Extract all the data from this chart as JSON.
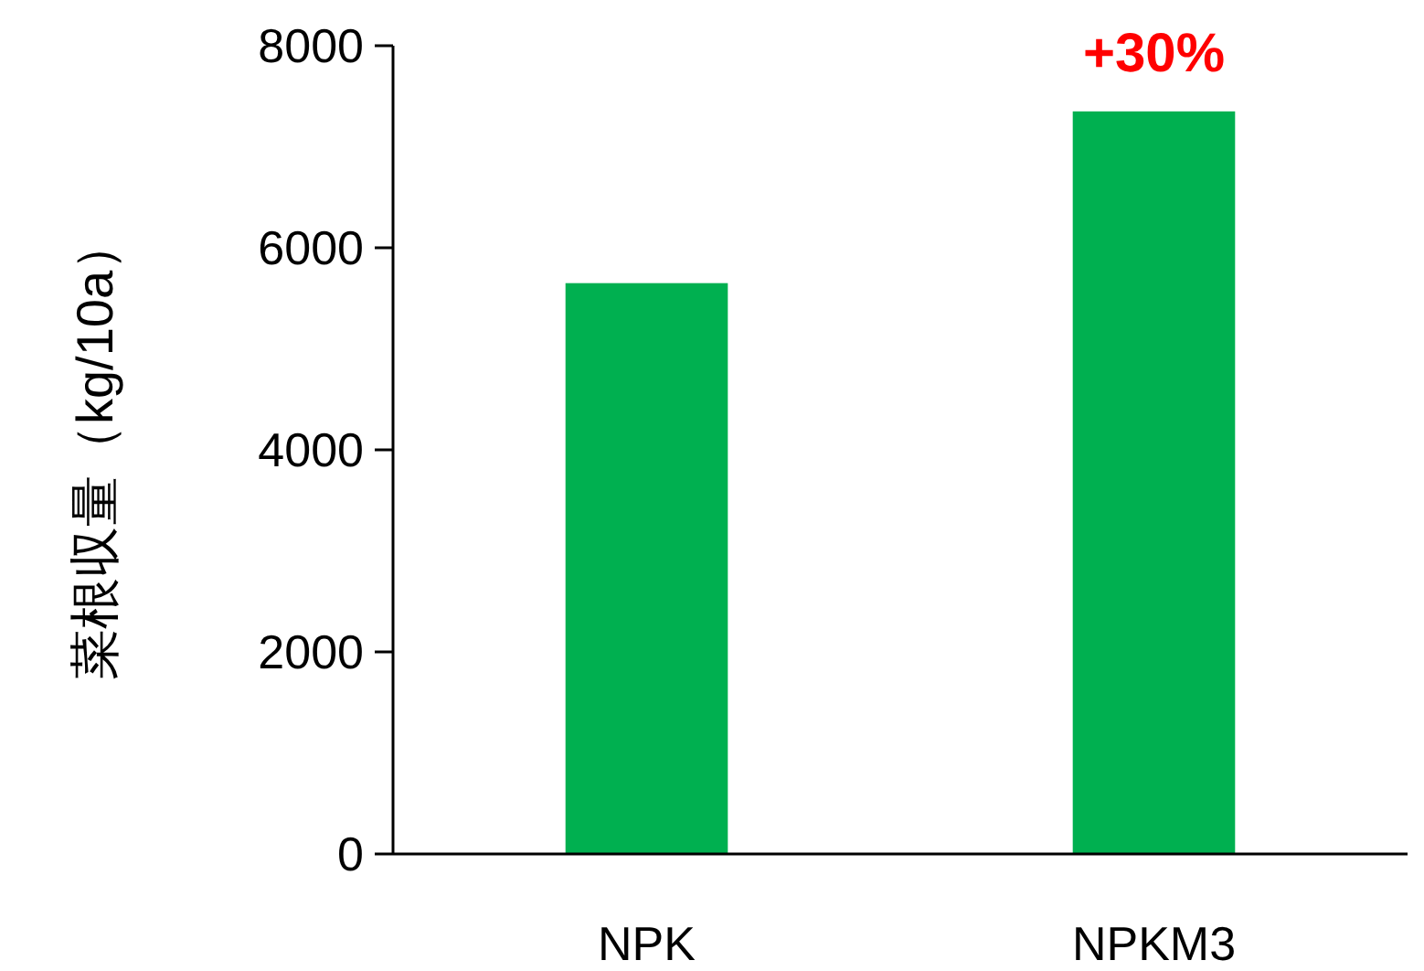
{
  "chart_data": {
    "type": "bar",
    "ylabel": "菜根収量（kg/10a）",
    "categories": [
      "NPK",
      "NPKM3"
    ],
    "values": [
      5650,
      7350
    ],
    "color": "#00b050",
    "ylim": [
      0,
      8000
    ],
    "yticks": [
      0,
      2000,
      4000,
      6000,
      8000
    ],
    "annotations": [
      {
        "text": "+30%",
        "x": "NPKM3",
        "y": 7350
      }
    ]
  }
}
